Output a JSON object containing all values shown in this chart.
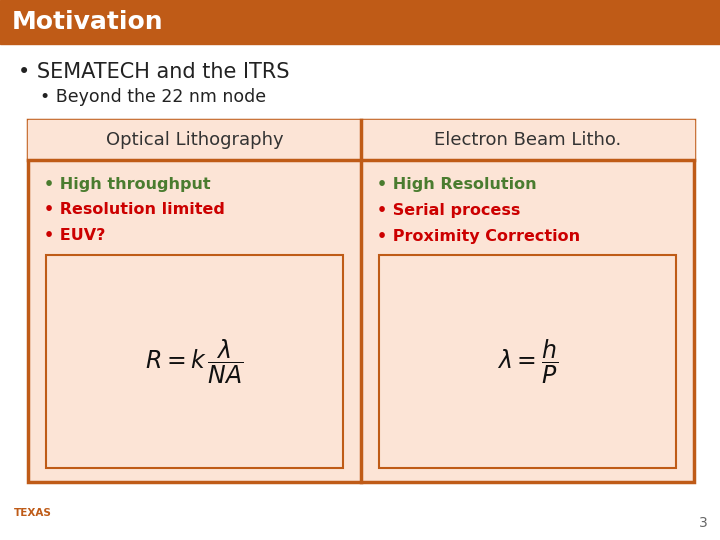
{
  "title": "Motivation",
  "title_bg": "#bf5b17",
  "title_fg": "#ffffff",
  "slide_bg": "#ffffff",
  "bullet1": "SEMATECH and the ITRS",
  "bullet2": "Beyond the 22 nm node",
  "table_border": "#bf5b17",
  "table_header_bg": "#fce4d6",
  "table_cell_bg": "#fce4d6",
  "col1_header": "Optical Lithography",
  "col2_header": "Electron Beam Litho.",
  "col1_items": [
    "High throughput",
    "Resolution limited",
    "EUV?"
  ],
  "col2_items": [
    "High Resolution",
    "Serial process",
    "Proximity Correction"
  ],
  "col1_item_colors": [
    "#4a7c2f",
    "#cc0000",
    "#cc0000"
  ],
  "col2_item_colors": [
    "#4a7c2f",
    "#cc0000",
    "#cc0000"
  ],
  "footer_num": "3",
  "header_text_color": "#333333",
  "bullet_text_color": "#222222"
}
